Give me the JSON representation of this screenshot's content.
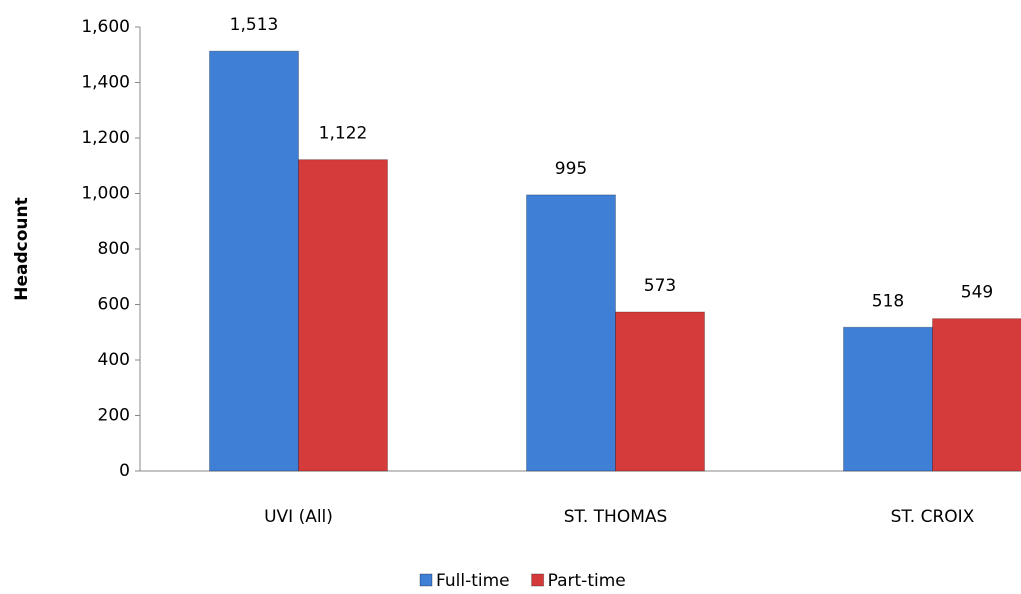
{
  "chart_data": {
    "type": "bar",
    "y_label": "Headcount",
    "categories": [
      "UVI (All)",
      "ST. THOMAS",
      "ST. CROIX"
    ],
    "series": [
      {
        "name": "Full-time",
        "color": "#3f7fd6",
        "values": [
          1513,
          995,
          518
        ],
        "value_labels": [
          "1,513",
          "995",
          "518"
        ]
      },
      {
        "name": "Part-time",
        "color": "#d63b3b",
        "values": [
          1122,
          573,
          549
        ],
        "value_labels": [
          "1,122",
          "573",
          "549"
        ]
      }
    ],
    "ylim": [
      0,
      1600
    ],
    "yticks": [
      0,
      200,
      400,
      600,
      800,
      {
        "value": 1000,
        "label": "1,000"
      },
      {
        "value": 1200,
        "label": "1,200"
      },
      {
        "value": 1400,
        "label": "1,400"
      },
      {
        "value": 1600,
        "label": "1,600"
      }
    ],
    "legend": "bottom"
  }
}
